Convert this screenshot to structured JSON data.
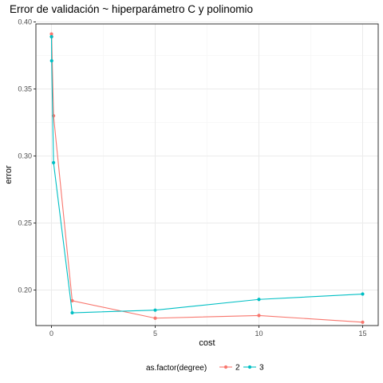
{
  "chart_data": {
    "type": "line",
    "title": "Error de validación ~ hiperparámetro C y polinomio",
    "xlabel": "cost",
    "ylabel": "error",
    "xlim": [
      -0.75,
      15.75
    ],
    "ylim": [
      0.1735,
      0.3985
    ],
    "x_ticks": [
      0,
      5,
      10,
      15
    ],
    "y_ticks": [
      0.2,
      0.25,
      0.3,
      0.35,
      0.4
    ],
    "x_tick_labels": [
      "0",
      "5",
      "10",
      "15"
    ],
    "y_tick_labels": [
      "0.20",
      "0.25",
      "0.30",
      "0.35",
      "0.40"
    ],
    "grid": true,
    "legend": {
      "title": "as.factor(degree)",
      "placement": "bottom"
    },
    "series": [
      {
        "name": "2",
        "color": "#f8766d",
        "points": [
          {
            "x": 0.001,
            "y": 0.391
          },
          {
            "x": 0.01,
            "y": 0.389
          },
          {
            "x": 0.1,
            "y": 0.33
          },
          {
            "x": 1,
            "y": 0.192
          },
          {
            "x": 5,
            "y": 0.179
          },
          {
            "x": 10,
            "y": 0.181
          },
          {
            "x": 15,
            "y": 0.176
          }
        ]
      },
      {
        "name": "3",
        "color": "#00bfc4",
        "points": [
          {
            "x": 0.001,
            "y": 0.389
          },
          {
            "x": 0.01,
            "y": 0.371
          },
          {
            "x": 0.1,
            "y": 0.295
          },
          {
            "x": 1,
            "y": 0.183
          },
          {
            "x": 5,
            "y": 0.185
          },
          {
            "x": 10,
            "y": 0.193
          },
          {
            "x": 15,
            "y": 0.197
          }
        ]
      }
    ]
  }
}
